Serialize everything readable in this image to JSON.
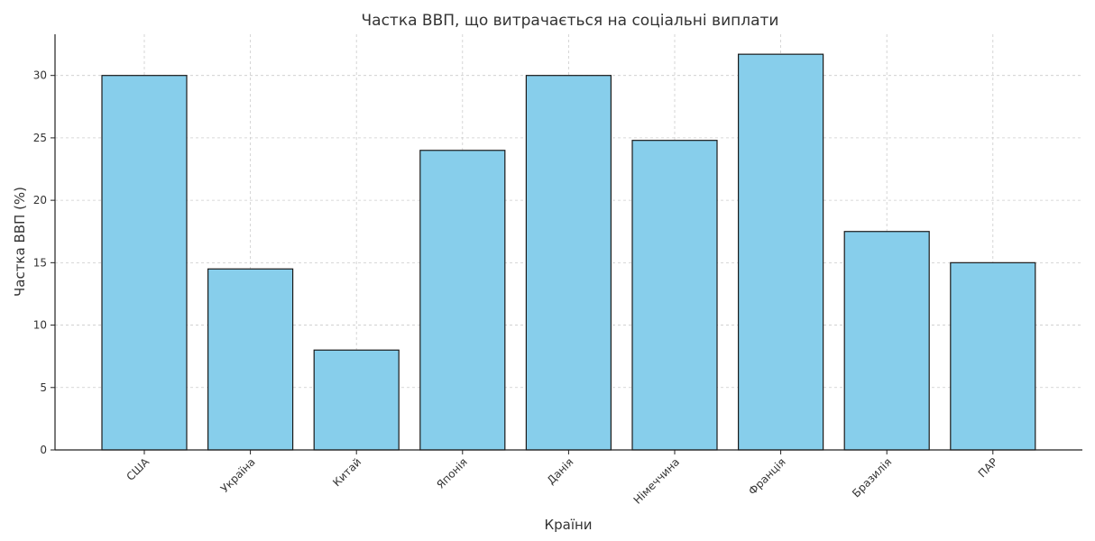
{
  "chart_data": {
    "type": "bar",
    "title": "Частка ВВП, що витрачається на соціальні виплати",
    "xlabel": "Країни",
    "ylabel": "Частка ВВП (%)",
    "categories": [
      "США",
      "Україна",
      "Китай",
      "Японія",
      "Данія",
      "Німеччина",
      "Франція",
      "Бразилія",
      "ПАР"
    ],
    "values": [
      30,
      14.5,
      8,
      24,
      30,
      24.8,
      31.7,
      17.5,
      15
    ],
    "ylim": [
      0,
      33.3
    ],
    "yticks": [
      0,
      5,
      10,
      15,
      20,
      25,
      30
    ],
    "grid": true,
    "bar_color": "#87ceeb",
    "edge_color": "#1a1a1a"
  }
}
